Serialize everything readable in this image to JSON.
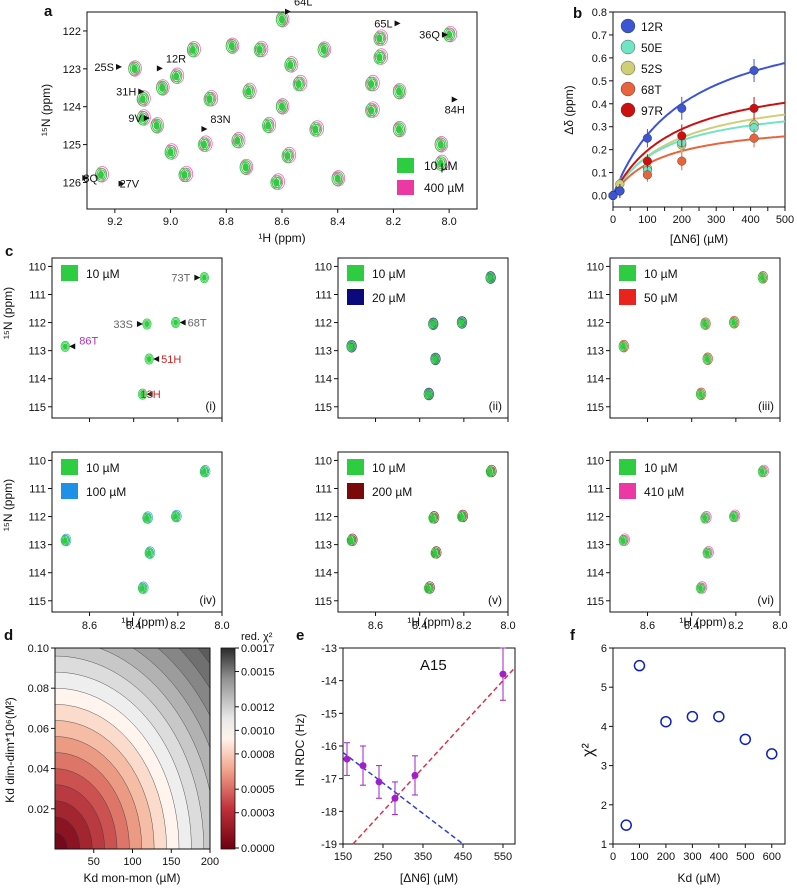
{
  "panels": {
    "a": "a",
    "b": "b",
    "c": "c",
    "d": "d",
    "e": "e",
    "f": "f"
  },
  "colors": {
    "green": "#2ecc40",
    "magenta": "#ec38a3",
    "navy": "#0a0a7a",
    "red": "#e8241c",
    "skyblue": "#1e90e8",
    "darkred": "#7a0a0a",
    "blue_line": "#3b55d3",
    "cyan": "#70e4c4",
    "khaki": "#cfcf7a",
    "orange": "#e8643c",
    "red_series": "#cc1010",
    "purple": "#a020c8"
  },
  "chart_data": [
    {
      "id": "a",
      "type": "scatter",
      "xlabel": "¹H (ppm)",
      "ylabel": "¹⁵N (ppm)",
      "xlim": [
        9.3,
        7.9
      ],
      "ylim": [
        126.7,
        121.5
      ],
      "xticks": [
        9.2,
        9.0,
        8.8,
        8.6,
        8.4,
        8.2,
        8.0
      ],
      "xtick_labels": [
        "9.2",
        "9.0",
        "8.8",
        "8.6",
        "8.4",
        "8.2",
        "8.0"
      ],
      "yticks": [
        122,
        123,
        124,
        125,
        126
      ],
      "ytick_labels": [
        "122",
        "123",
        "124",
        "125",
        "126"
      ],
      "legend": [
        {
          "label": "10 µM",
          "color": "green"
        },
        {
          "label": "400 µM",
          "color": "magenta"
        }
      ],
      "peaks": [
        [
          8.6,
          121.7
        ],
        [
          8.0,
          122.1
        ],
        [
          8.25,
          122.2
        ],
        [
          8.78,
          122.4
        ],
        [
          8.92,
          122.5
        ],
        [
          8.68,
          122.5
        ],
        [
          8.45,
          122.5
        ],
        [
          8.57,
          122.9
        ],
        [
          8.25,
          122.7
        ],
        [
          9.13,
          123.0
        ],
        [
          8.98,
          123.2
        ],
        [
          8.54,
          123.4
        ],
        [
          9.03,
          123.5
        ],
        [
          8.72,
          123.6
        ],
        [
          8.28,
          123.4
        ],
        [
          8.18,
          123.6
        ],
        [
          9.1,
          123.8
        ],
        [
          8.86,
          123.8
        ],
        [
          8.6,
          124.0
        ],
        [
          9.1,
          124.3
        ],
        [
          8.28,
          124.1
        ],
        [
          9.05,
          124.5
        ],
        [
          8.65,
          124.5
        ],
        [
          8.48,
          124.6
        ],
        [
          8.18,
          124.6
        ],
        [
          8.76,
          124.9
        ],
        [
          8.88,
          125.0
        ],
        [
          8.03,
          125.0
        ],
        [
          9.0,
          125.2
        ],
        [
          8.58,
          125.3
        ],
        [
          8.73,
          125.6
        ],
        [
          9.25,
          125.8
        ],
        [
          8.95,
          125.8
        ],
        [
          8.4,
          125.9
        ],
        [
          8.03,
          125.5
        ],
        [
          8.62,
          126.0
        ]
      ],
      "labels": [
        {
          "text": "64L",
          "x": 8.6,
          "y": 121.7,
          "dir": "up"
        },
        {
          "text": "65L",
          "x": 8.16,
          "y": 121.8,
          "dir": "left"
        },
        {
          "text": "36Q",
          "x": 7.99,
          "y": 122.1,
          "dir": "left"
        },
        {
          "text": "12R",
          "x": 9.06,
          "y": 123.2,
          "dir": "up"
        },
        {
          "text": "25S",
          "x": 9.16,
          "y": 122.95,
          "dir": "left"
        },
        {
          "text": "31H",
          "x": 9.08,
          "y": 123.6,
          "dir": "left"
        },
        {
          "text": "84H",
          "x": 7.98,
          "y": 123.6,
          "dir": "down"
        },
        {
          "text": "9V",
          "x": 9.06,
          "y": 124.3,
          "dir": "left"
        },
        {
          "text": "83N",
          "x": 8.9,
          "y": 124.8,
          "dir": "up"
        },
        {
          "text": "27V",
          "x": 9.14,
          "y": 125.95,
          "dir": "right"
        },
        {
          "text": "8Q",
          "x": 9.27,
          "y": 125.8,
          "dir": "right"
        }
      ]
    },
    {
      "id": "b",
      "type": "line",
      "xlabel": "[ΔN6] (µM)",
      "ylabel": "Δδ (ppm)",
      "xlim": [
        0,
        500
      ],
      "ylim": [
        -0.05,
        0.8
      ],
      "xticks": [
        0,
        50,
        100,
        150,
        200,
        250,
        300,
        350,
        400,
        450,
        500
      ],
      "xtick_labels": [
        "0",
        "50",
        "100",
        "150",
        "200",
        "250",
        "300",
        "350",
        "400",
        "450",
        "500"
      ],
      "yticks": [
        0.0,
        0.1,
        0.2,
        0.3,
        0.4,
        0.5,
        0.6,
        0.7,
        0.8
      ],
      "ytick_labels": [
        "0.0",
        "0.1",
        "0.2",
        "0.3",
        "0.4",
        "0.5",
        "0.6",
        "0.7",
        "0.8"
      ],
      "x": [
        0,
        20,
        100,
        200,
        410
      ],
      "series": [
        {
          "name": "12R",
          "color": "blue_line",
          "values": [
            0,
            0.02,
            0.25,
            0.38,
            0.545
          ],
          "errors": [
            0.02,
            0.03,
            0.04,
            0.05,
            0.05
          ],
          "fit_max": 0.82,
          "fit_kd": 210
        },
        {
          "name": "50E",
          "color": "cyan",
          "values": [
            0,
            0.02,
            0.11,
            0.23,
            0.295
          ],
          "errors": [
            0.02,
            0.03,
            0.03,
            0.04,
            0.04
          ],
          "fit_max": 0.42,
          "fit_kd": 150
        },
        {
          "name": "52S",
          "color": "khaki",
          "values": [
            0,
            0.05,
            0.12,
            0.22,
            0.31
          ],
          "errors": [
            0.02,
            0.03,
            0.03,
            0.04,
            0.04
          ],
          "fit_max": 0.48,
          "fit_kd": 180
        },
        {
          "name": "68T",
          "color": "orange",
          "values": [
            0,
            0.02,
            0.09,
            0.15,
            0.25
          ],
          "errors": [
            0.02,
            0.03,
            0.03,
            0.04,
            0.04
          ],
          "fit_max": 0.33,
          "fit_kd": 140
        },
        {
          "name": "97R",
          "color": "red_series",
          "values": [
            0,
            0.02,
            0.15,
            0.26,
            0.38
          ],
          "errors": [
            0.02,
            0.03,
            0.03,
            0.05,
            0.05
          ],
          "fit_max": 0.55,
          "fit_kd": 180
        }
      ]
    },
    {
      "id": "c",
      "type": "scatter",
      "xlabel": "¹H (ppm)",
      "ylabel": "¹⁵N (ppm)",
      "xlim": [
        8.77,
        8.0
      ],
      "ylim": [
        109.7,
        115.4
      ],
      "xticks": [
        8.6,
        8.4,
        8.2,
        8.0
      ],
      "xtick_labels": [
        "8.6",
        "8.4",
        "8.2",
        "8.0"
      ],
      "yticks": [
        110,
        111,
        112,
        113,
        114,
        115
      ],
      "ytick_labels": [
        "110",
        "111",
        "112",
        "113",
        "114",
        "115"
      ],
      "peaks": [
        [
          8.08,
          110.4
        ],
        [
          8.34,
          112.05
        ],
        [
          8.21,
          112.0
        ],
        [
          8.71,
          112.85
        ],
        [
          8.33,
          113.3
        ],
        [
          8.36,
          114.55
        ]
      ],
      "subpanels": [
        {
          "roman": "(i)",
          "ref": "10 µM",
          "conc": "10 µM",
          "conc_color": "green"
        },
        {
          "roman": "(ii)",
          "ref": "10 µM",
          "conc": "20 µM",
          "conc_color": "navy"
        },
        {
          "roman": "(iii)",
          "ref": "10 µM",
          "conc": "50 µM",
          "conc_color": "red"
        },
        {
          "roman": "(iv)",
          "ref": "10 µM",
          "conc": "100 µM",
          "conc_color": "skyblue"
        },
        {
          "roman": "(v)",
          "ref": "10 µM",
          "conc": "200 µM",
          "conc_color": "darkred"
        },
        {
          "roman": "(vi)",
          "ref": "10 µM",
          "conc": "410 µM",
          "conc_color": "magenta"
        }
      ],
      "labels": [
        {
          "text": "73T",
          "color": "#666666"
        },
        {
          "text": "33S",
          "color": "#666666"
        },
        {
          "text": "68T",
          "color": "#666666"
        },
        {
          "text": "86T",
          "color": "#b030c0"
        },
        {
          "text": "51H",
          "color": "#d02020"
        },
        {
          "text": "13H",
          "color": "#d02020"
        }
      ]
    },
    {
      "id": "d",
      "type": "heatmap",
      "xlabel": "Kd mon-mon (µM)",
      "ylabel": "Kd dim-dim*10⁶(M²)",
      "xlim": [
        0,
        200
      ],
      "ylim": [
        0,
        0.1
      ],
      "xticks": [
        50,
        100,
        150,
        200
      ],
      "xtick_labels": [
        "50",
        "100",
        "150",
        "200"
      ],
      "yticks": [
        0.02,
        0.04,
        0.06,
        0.08,
        0.1
      ],
      "ytick_labels": [
        "0.02",
        "0.04",
        "0.06",
        "0.08",
        "0.10"
      ],
      "colorbar_title": "red. χ²",
      "colorbar_ticks": [
        0,
        0.0003,
        0.0005,
        0.0008,
        0.001,
        0.0012,
        0.0015,
        0.0017
      ],
      "colorbar_labels": [
        "0.0000",
        "0.0003",
        "0.0005",
        "0.0008",
        "0.0010",
        "0.0012",
        "0.0015",
        "0.0017"
      ]
    },
    {
      "id": "e",
      "type": "scatter",
      "title": "A15",
      "xlabel": "[ΔN6] (µM)",
      "ylabel": "HN RDC (Hz)",
      "xlim": [
        150,
        580
      ],
      "ylim": [
        -19,
        -13
      ],
      "xticks": [
        150,
        250,
        350,
        450,
        550
      ],
      "xtick_labels": [
        "150",
        "250",
        "350",
        "450",
        "550"
      ],
      "yticks": [
        -19,
        -18,
        -17,
        -16,
        -15,
        -14,
        -13
      ],
      "ytick_labels": [
        "-19",
        "-18",
        "-17",
        "-16",
        "-15",
        "-14",
        "-13"
      ],
      "x": [
        160,
        200,
        240,
        280,
        330,
        550
      ],
      "values": [
        -16.4,
        -16.6,
        -17.1,
        -17.6,
        -16.9,
        -13.8
      ],
      "errors": [
        0.5,
        0.6,
        0.5,
        0.5,
        0.6,
        0.8
      ],
      "blue_line": [
        [
          150,
          -16.2
        ],
        [
          450,
          -19.0
        ]
      ],
      "red_line": [
        [
          175,
          -19.0
        ],
        [
          580,
          -13.6
        ]
      ]
    },
    {
      "id": "f",
      "type": "scatter",
      "xlabel": "Kd (µM)",
      "ylabel": "χ²",
      "xlim": [
        0,
        650
      ],
      "ylim": [
        1,
        6
      ],
      "xticks": [
        0,
        100,
        200,
        300,
        400,
        500,
        600
      ],
      "xtick_labels": [
        "0",
        "100",
        "200",
        "300",
        "400",
        "500",
        "600"
      ],
      "yticks": [
        1,
        2,
        3,
        4,
        5,
        6
      ],
      "ytick_labels": [
        "1",
        "2",
        "3",
        "4",
        "5",
        "6"
      ],
      "x": [
        50,
        100,
        200,
        300,
        400,
        500,
        600
      ],
      "values": [
        1.48,
        5.55,
        4.12,
        4.25,
        4.25,
        3.67,
        3.3
      ]
    }
  ]
}
